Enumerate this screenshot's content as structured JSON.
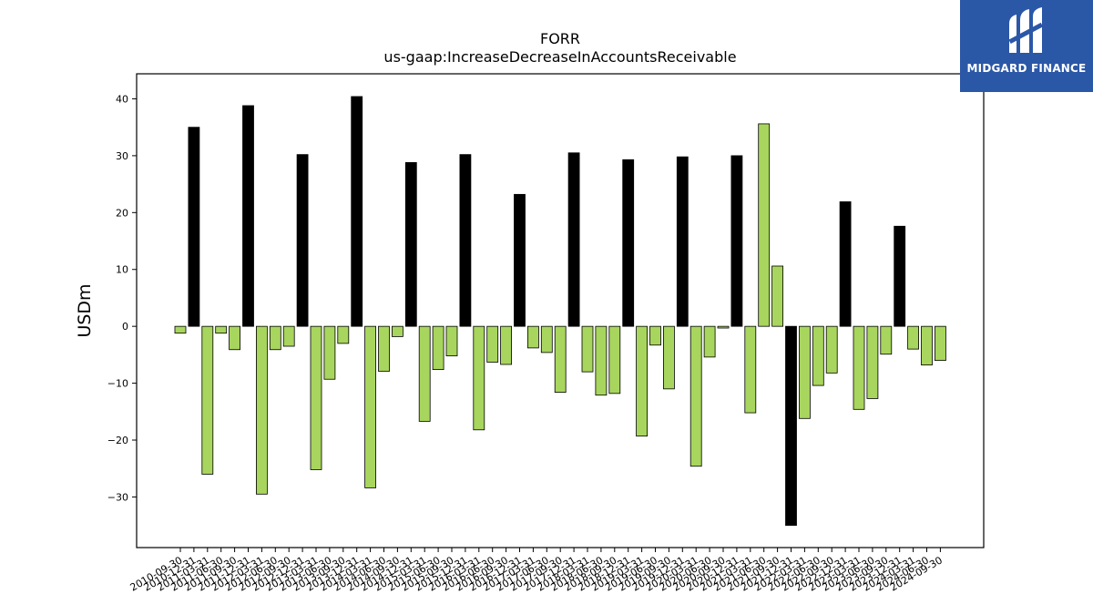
{
  "logo": {
    "text": "MIDGARD FINANCE"
  },
  "colors": {
    "positive": "#000000",
    "negative": "#a8d55e",
    "edge": "#000000"
  },
  "chart_data": {
    "type": "bar",
    "title": "FORR",
    "subtitle": "us-gaap:IncreaseDecreaseInAccountsReceivable",
    "ylabel": "USDm",
    "xlabel": "",
    "ylim": [
      -38.9,
      44.4
    ],
    "yticks": [
      -30,
      -20,
      -10,
      0,
      10,
      20,
      30,
      40
    ],
    "ytick_labels": [
      "−30",
      "−20",
      "−10",
      "0",
      "10",
      "20",
      "30",
      "40"
    ],
    "grid": false,
    "categories": [
      "2010-09-30",
      "2010-12-31",
      "2011-03-31",
      "2011-06-30",
      "2011-09-30",
      "2011-12-31",
      "2012-03-31",
      "2012-06-30",
      "2012-09-30",
      "2012-12-31",
      "2013-03-31",
      "2013-06-30",
      "2013-09-30",
      "2013-12-31",
      "2014-03-31",
      "2014-06-30",
      "2014-09-30",
      "2014-12-31",
      "2015-03-31",
      "2015-06-30",
      "2015-09-30",
      "2015-12-31",
      "2016-03-31",
      "2016-06-30",
      "2016-09-30",
      "2016-12-31",
      "2017-03-31",
      "2017-06-30",
      "2017-09-30",
      "2017-12-31",
      "2018-03-31",
      "2018-06-30",
      "2018-09-30",
      "2018-12-31",
      "2019-03-31",
      "2019-06-30",
      "2019-09-30",
      "2019-12-31",
      "2020-03-31",
      "2020-06-30",
      "2020-09-30",
      "2020-12-31",
      "2021-03-31",
      "2021-06-30",
      "2021-09-30",
      "2021-12-31",
      "2022-03-31",
      "2022-06-30",
      "2022-09-30",
      "2022-12-31",
      "2023-03-31",
      "2023-06-30",
      "2023-09-30",
      "2023-12-31",
      "2024-03-31",
      "2024-06-30",
      "2024-09-30"
    ],
    "values": [
      -1.2,
      35.0,
      -26.0,
      -1.2,
      -4.1,
      38.8,
      -29.5,
      -4.1,
      -3.5,
      30.2,
      -25.2,
      -9.3,
      -3.0,
      40.4,
      -28.4,
      -7.9,
      -1.8,
      28.8,
      -16.7,
      -7.6,
      -5.2,
      30.2,
      -18.2,
      -6.3,
      -6.7,
      23.2,
      -3.8,
      -4.6,
      -11.6,
      30.5,
      -8.0,
      -12.1,
      -11.8,
      29.3,
      -19.3,
      -3.3,
      -11.0,
      29.8,
      -24.6,
      -5.4,
      -0.3,
      30.0,
      -15.2,
      35.6,
      10.6,
      -35.0,
      -16.2,
      -10.4,
      -8.2,
      21.9,
      -14.6,
      -12.7,
      -4.9,
      17.6,
      -4.0,
      -6.8,
      -6.0
    ],
    "highlight_indices": [
      45
    ],
    "note_colors": "bars in black mark one quarter per year (positive in this data), others green; index 45 is black"
  }
}
